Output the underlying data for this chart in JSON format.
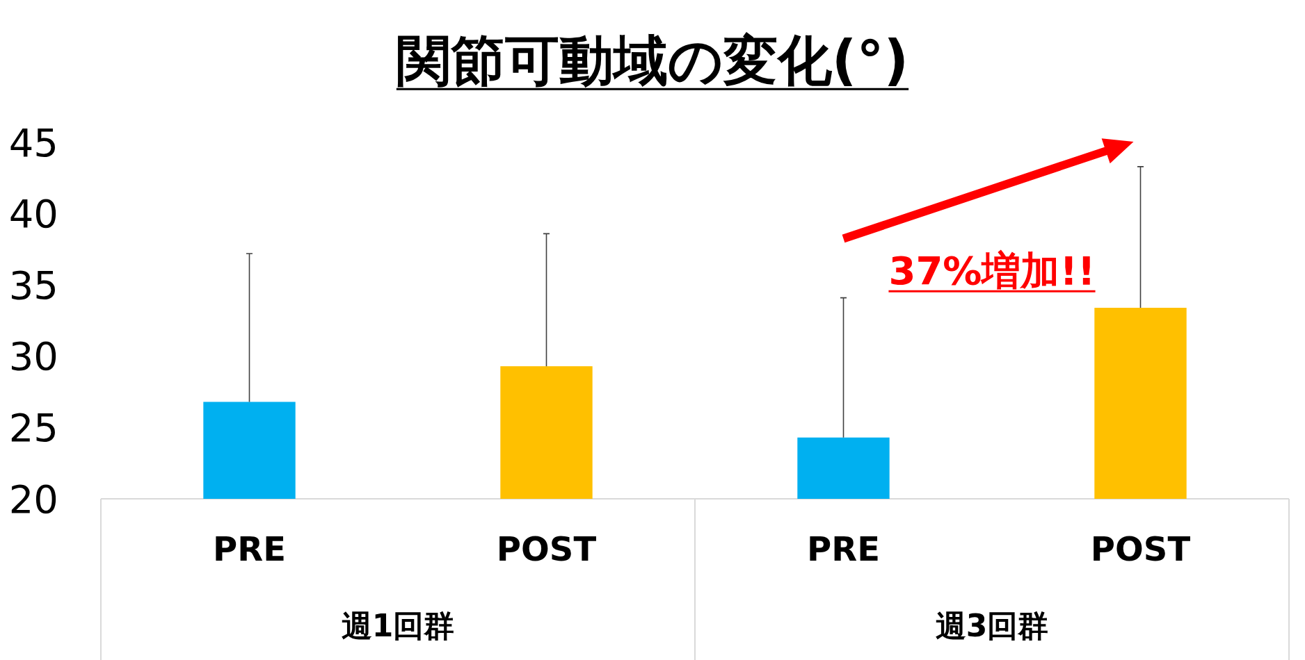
{
  "chart_data": {
    "type": "bar",
    "title": "関節可動域の変化(°)",
    "categories": [
      "週1回群",
      "週3回群"
    ],
    "series": [
      {
        "name": "PRE",
        "color": "#00b0f0",
        "values": [
          26.8,
          24.3
        ],
        "errors": [
          [
            26.8,
            37.2
          ],
          [
            24.3,
            34.1
          ]
        ]
      },
      {
        "name": "POST",
        "color": "#ffc000",
        "values": [
          29.3,
          33.4
        ],
        "errors": [
          [
            29.3,
            38.6
          ],
          [
            33.4,
            43.3
          ]
        ]
      }
    ],
    "ylim": [
      20,
      45
    ],
    "yticks": [
      20,
      25,
      30,
      35,
      40,
      45
    ],
    "grid": false,
    "legend": false,
    "annotations": [
      "37%増加!!"
    ]
  }
}
